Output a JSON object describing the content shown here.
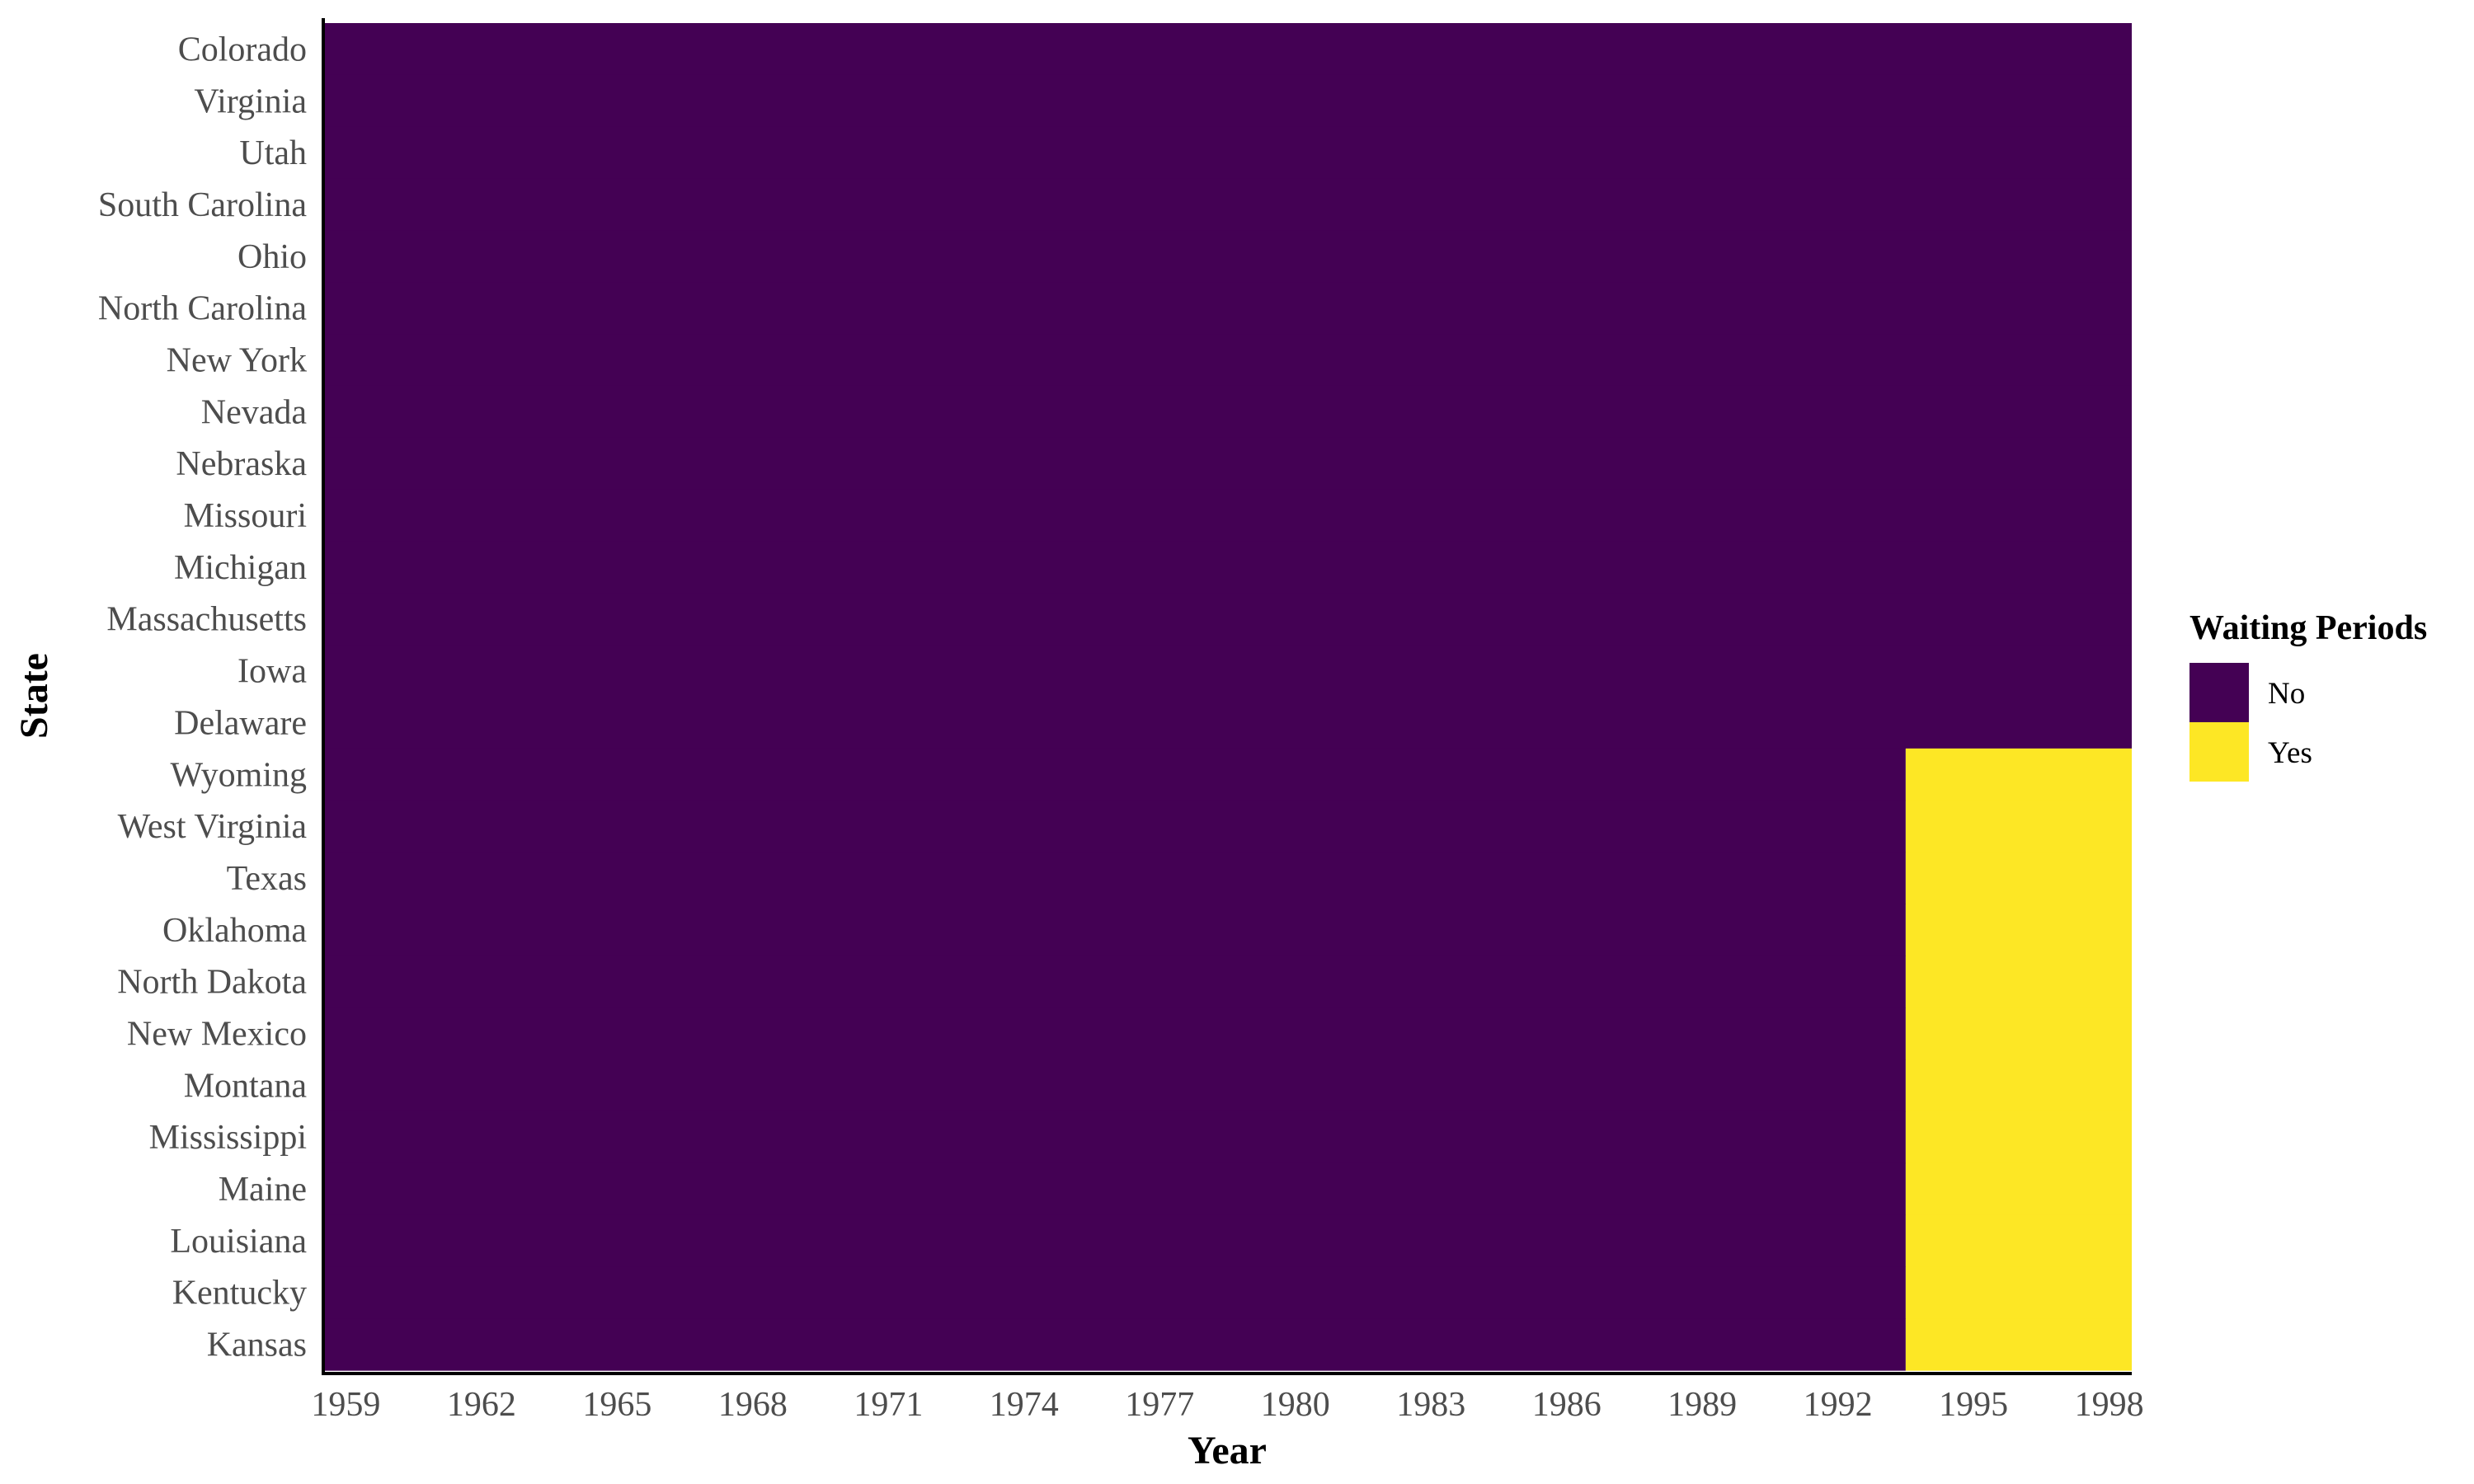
{
  "chart_data": {
    "type": "heatmap",
    "title": "",
    "xlabel": "Year",
    "ylabel": "State",
    "x_range": [
      1959,
      1998
    ],
    "x_ticks": [
      "1959",
      "1962",
      "1965",
      "1968",
      "1971",
      "1974",
      "1977",
      "1980",
      "1983",
      "1986",
      "1989",
      "1992",
      "1995",
      "1998"
    ],
    "states_top_to_bottom": [
      "Colorado",
      "Virginia",
      "Utah",
      "South Carolina",
      "Ohio",
      "North Carolina",
      "New York",
      "Nevada",
      "Nebraska",
      "Missouri",
      "Michigan",
      "Massachusetts",
      "Iowa",
      "Delaware",
      "Wyoming",
      "West Virginia",
      "Texas",
      "Oklahoma",
      "North Dakota",
      "New Mexico",
      "Montana",
      "Mississippi",
      "Maine",
      "Louisiana",
      "Kentucky",
      "Kansas"
    ],
    "legend": {
      "title": "Waiting Periods",
      "placement": "right",
      "entries": [
        {
          "label": "No",
          "color": "#440154"
        },
        {
          "label": "Yes",
          "color": "#FDE725"
        }
      ]
    },
    "rows": [
      {
        "state": "Colorado",
        "yes_from_year": null
      },
      {
        "state": "Virginia",
        "yes_from_year": null
      },
      {
        "state": "Utah",
        "yes_from_year": null
      },
      {
        "state": "South Carolina",
        "yes_from_year": null
      },
      {
        "state": "Ohio",
        "yes_from_year": null
      },
      {
        "state": "North Carolina",
        "yes_from_year": null
      },
      {
        "state": "New York",
        "yes_from_year": null
      },
      {
        "state": "Nevada",
        "yes_from_year": null
      },
      {
        "state": "Nebraska",
        "yes_from_year": null
      },
      {
        "state": "Missouri",
        "yes_from_year": null
      },
      {
        "state": "Michigan",
        "yes_from_year": null
      },
      {
        "state": "Massachusetts",
        "yes_from_year": null
      },
      {
        "state": "Iowa",
        "yes_from_year": null
      },
      {
        "state": "Delaware",
        "yes_from_year": null
      },
      {
        "state": "Wyoming",
        "yes_from_year": 1994
      },
      {
        "state": "West Virginia",
        "yes_from_year": 1994
      },
      {
        "state": "Texas",
        "yes_from_year": 1994
      },
      {
        "state": "Oklahoma",
        "yes_from_year": 1994
      },
      {
        "state": "North Dakota",
        "yes_from_year": 1994
      },
      {
        "state": "New Mexico",
        "yes_from_year": 1994
      },
      {
        "state": "Montana",
        "yes_from_year": 1994
      },
      {
        "state": "Mississippi",
        "yes_from_year": 1994
      },
      {
        "state": "Maine",
        "yes_from_year": 1994
      },
      {
        "state": "Louisiana",
        "yes_from_year": 1994
      },
      {
        "state": "Kentucky",
        "yes_from_year": 1994
      },
      {
        "state": "Kansas",
        "yes_from_year": 1994
      }
    ]
  }
}
